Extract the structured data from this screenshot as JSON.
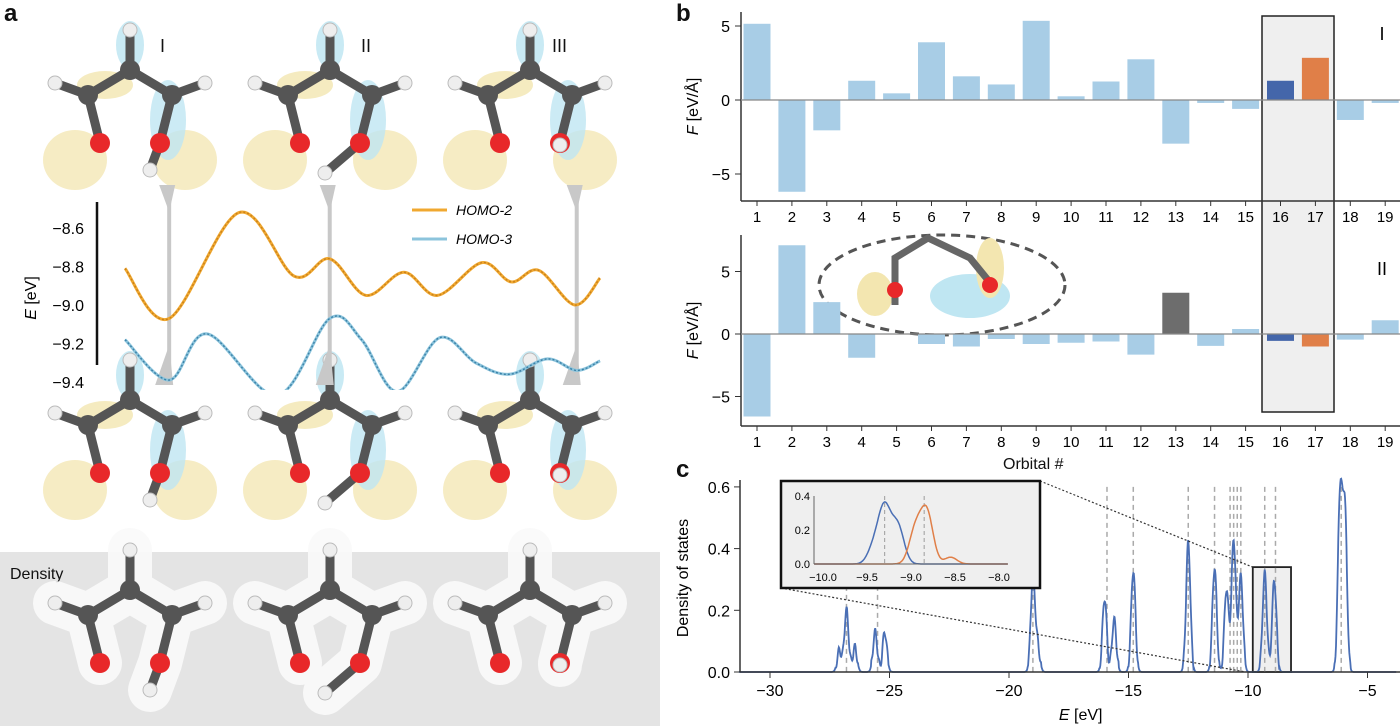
{
  "panels": {
    "a": {
      "letter": "a",
      "state_labels": [
        "I",
        "II",
        "III"
      ],
      "density_label": "Density"
    },
    "b": {
      "letter": "b",
      "x_label": "Orbital #"
    },
    "c": {
      "letter": "c"
    }
  },
  "colors": {
    "light_blue_bar": "#a8cde6",
    "highlight_blue": "#4466aa",
    "highlight_orange": "#e07f48",
    "gray_bar": "#6d6d6d",
    "homo2": "#f0a830",
    "homo3": "#8cc4dc",
    "dos_line": "#4a6fb5",
    "inset_orange": "#e07f48",
    "highlight_bg": "#efefef",
    "density_bg": "#e4e4e4"
  },
  "chart_data": [
    {
      "id": "energy",
      "type": "line",
      "ylabel_var": "E",
      "ylabel_unit": "[eV]",
      "ylim": [
        -9.5,
        -8.45
      ],
      "yticks": [
        "-8.6",
        "-8.8",
        "-9.0",
        "-9.2",
        "-9.4"
      ],
      "ytick_values": [
        -8.6,
        -8.8,
        -9.0,
        -9.2,
        -9.4
      ],
      "markers_at": [
        9.3,
        43.1,
        95.1
      ],
      "series": [
        {
          "name": "HOMO-2",
          "color": "#f0a830",
          "x": [
            0,
            9.3,
            24,
            35.6,
            43.1,
            50.7,
            58.7,
            65.8,
            75.1,
            81.3,
            87.1,
            94.7,
            100
          ],
          "y": [
            -8.81,
            -9.07,
            -8.52,
            -8.85,
            -8.76,
            -8.95,
            -8.83,
            -8.95,
            -8.78,
            -8.88,
            -8.82,
            -9.0,
            -8.86
          ]
        },
        {
          "name": "HOMO-3",
          "color": "#8cc4dc",
          "x": [
            0,
            9.3,
            17.3,
            32,
            43.1,
            49.8,
            57.3,
            66.2,
            73.8,
            80.9,
            88.9,
            95.1,
            100
          ],
          "y": [
            -9.18,
            -9.39,
            -9.15,
            -9.47,
            -9.07,
            -9.18,
            -9.45,
            -9.17,
            -9.3,
            -9.36,
            -9.28,
            -9.34,
            -9.29
          ]
        }
      ]
    },
    {
      "id": "force_I",
      "type": "bar",
      "panel_label": "I",
      "ylabel_var": "F",
      "ylabel_unit": "[eV/Å]",
      "ylim": [
        -6.8,
        6
      ],
      "yticks": [
        "5",
        "0",
        "-5"
      ],
      "ytick_values": [
        5,
        0,
        -5
      ],
      "categories": [
        "1",
        "2",
        "3",
        "4",
        "5",
        "6",
        "7",
        "8",
        "9",
        "10",
        "11",
        "12",
        "13",
        "14",
        "15",
        "16",
        "17",
        "18",
        "19"
      ],
      "values": [
        5.15,
        -6.2,
        -2.05,
        1.3,
        0.45,
        3.9,
        1.6,
        1.05,
        5.35,
        0.25,
        1.25,
        2.75,
        -2.95,
        -0.2,
        -0.6,
        1.3,
        2.85,
        -1.35,
        -0.2
      ],
      "highlight": {
        "16": "#4466aa",
        "17": "#e07f48"
      }
    },
    {
      "id": "force_II",
      "type": "bar",
      "panel_label": "II",
      "ylabel_var": "F",
      "ylabel_unit": "[eV/Å]",
      "ylim": [
        -7.3,
        7.8
      ],
      "yticks": [
        "5",
        "0",
        "-5"
      ],
      "ytick_values": [
        5,
        0,
        -5
      ],
      "categories": [
        "1",
        "2",
        "3",
        "4",
        "5",
        "6",
        "7",
        "8",
        "9",
        "10",
        "11",
        "12",
        "13",
        "14",
        "15",
        "16",
        "17",
        "18",
        "19"
      ],
      "values": [
        -6.6,
        7.1,
        2.55,
        -1.9,
        0,
        -0.8,
        -1.0,
        -0.4,
        -0.8,
        -0.7,
        -0.6,
        -1.65,
        3.3,
        -0.95,
        0.4,
        -0.55,
        -1.0,
        -0.45,
        1.1
      ],
      "highlight": {
        "13": "#6d6d6d",
        "16": "#4466aa",
        "17": "#e07f48"
      }
    },
    {
      "id": "dos",
      "type": "line",
      "xlabel_var": "E",
      "xlabel_unit": "[eV]",
      "ylabel": "Density of states",
      "xlim": [
        -31.3,
        -3.8
      ],
      "ylim": [
        0,
        0.6
      ],
      "xticks": [
        "-30",
        "-25",
        "-20",
        "-15",
        "-10",
        "-5"
      ],
      "xtick_values": [
        -30,
        -25,
        -20,
        -15,
        -10,
        -5
      ],
      "yticks": [
        "0.0",
        "0.2",
        "0.4",
        "0.6"
      ],
      "ytick_values": [
        0,
        0.2,
        0.4,
        0.6
      ],
      "orbital_energies": [
        -26.8,
        -25.5,
        -19.0,
        -15.9,
        -14.8,
        -12.5,
        -11.4,
        -10.75,
        -10.6,
        -10.45,
        -10.3,
        -9.3,
        -8.85,
        -6.1
      ],
      "peaks": [
        [
          -27.1,
          0.07
        ],
        [
          -26.8,
          0.2
        ],
        [
          -26.45,
          0.08
        ],
        [
          -25.6,
          0.13
        ],
        [
          -25.2,
          0.13
        ],
        [
          -19.0,
          0.31
        ],
        [
          -18.8,
          0.08
        ],
        [
          -16.0,
          0.24
        ],
        [
          -15.6,
          0.17
        ],
        [
          -14.8,
          0.33
        ],
        [
          -12.5,
          0.42
        ],
        [
          -11.4,
          0.34
        ],
        [
          -10.9,
          0.27
        ],
        [
          -10.6,
          0.43
        ],
        [
          -10.3,
          0.31
        ],
        [
          -9.3,
          0.32
        ],
        [
          -8.9,
          0.3
        ],
        [
          -6.15,
          0.57
        ],
        [
          -5.95,
          0.53
        ]
      ],
      "zoom_region": {
        "x": [
          -9.8,
          -8.2
        ],
        "y": [
          0,
          0.34
        ]
      }
    },
    {
      "id": "dos_inset",
      "type": "line",
      "xlim": [
        -10.1,
        -7.9
      ],
      "ylim": [
        0,
        0.4
      ],
      "xticks": [
        "-10.0",
        "-9.5",
        "-9.0",
        "-8.5",
        "-8.0"
      ],
      "xtick_values": [
        -10,
        -9.5,
        -9,
        -8.5,
        -8
      ],
      "yticks": [
        "0.0",
        "0.2",
        "0.4"
      ],
      "ytick_values": [
        0,
        0.2,
        0.4
      ],
      "orbital_energies": [
        -9.3,
        -8.85
      ],
      "series": [
        {
          "color": "#4a6fb5",
          "peaks": [
            [
              -9.42,
              0.1
            ],
            [
              -9.3,
              0.32
            ],
            [
              -9.15,
              0.22
            ]
          ]
        },
        {
          "color": "#e07f48",
          "peaks": [
            [
              -8.95,
              0.2
            ],
            [
              -8.82,
              0.3
            ],
            [
              -8.55,
              0.04
            ]
          ]
        }
      ]
    }
  ]
}
